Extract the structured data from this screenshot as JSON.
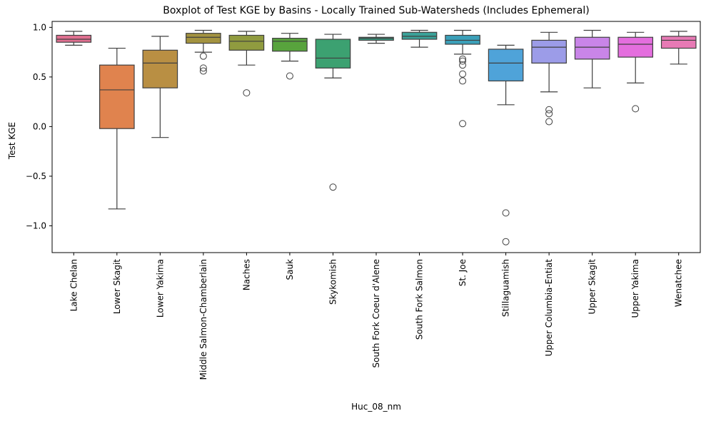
{
  "chart_data": {
    "type": "box",
    "title": "Boxplot of Test KGE by Basins - Locally Trained Sub-Watersheds (Includes Ephemeral)",
    "xlabel": "Huc_08_nm",
    "ylabel": "Test KGE",
    "ylim": [
      -1.27,
      1.06
    ],
    "yticks": [
      -1.0,
      -0.5,
      0.0,
      0.5,
      1.0
    ],
    "ytick_labels": [
      "−1.0",
      "−0.5",
      "0.0",
      "0.5",
      "1.0"
    ],
    "grid": false,
    "legend": "none",
    "categories": [
      "Lake Chelan",
      "Lower Skagit",
      "Lower Yakima",
      "Middle Salmon-Chamberlain",
      "Naches",
      "Sauk",
      "Skykomish",
      "South Fork Coeur d'Alene",
      "South Fork Salmon",
      "St. Joe",
      "Stillaguamish",
      "Upper Columbia-Entiat",
      "Upper Skagit",
      "Upper Yakima",
      "Wenatchee"
    ],
    "colors": [
      "#e07090",
      "#e0834e",
      "#b98f43",
      "#a39340",
      "#909b3f",
      "#58a33d",
      "#3ca171",
      "#3da186",
      "#3aa299",
      "#3ba0b9",
      "#4fa3d9",
      "#9c9ce8",
      "#c985e8",
      "#e46ede",
      "#e77ab5"
    ],
    "boxes": [
      {
        "whislo": 0.82,
        "q1": 0.85,
        "med": 0.88,
        "q3": 0.92,
        "whishi": 0.96,
        "fliers": []
      },
      {
        "whislo": -0.83,
        "q1": -0.02,
        "med": 0.37,
        "q3": 0.62,
        "whishi": 0.79,
        "fliers": []
      },
      {
        "whislo": -0.11,
        "q1": 0.39,
        "med": 0.64,
        "q3": 0.77,
        "whishi": 0.91,
        "fliers": []
      },
      {
        "whislo": 0.75,
        "q1": 0.84,
        "med": 0.9,
        "q3": 0.94,
        "whishi": 0.97,
        "fliers": [
          0.71,
          0.59,
          0.56
        ]
      },
      {
        "whislo": 0.62,
        "q1": 0.77,
        "med": 0.86,
        "q3": 0.92,
        "whishi": 0.96,
        "fliers": [
          0.34
        ]
      },
      {
        "whislo": 0.66,
        "q1": 0.76,
        "med": 0.86,
        "q3": 0.89,
        "whishi": 0.94,
        "fliers": [
          0.51
        ]
      },
      {
        "whislo": 0.49,
        "q1": 0.59,
        "med": 0.69,
        "q3": 0.88,
        "whishi": 0.93,
        "fliers": [
          -0.61
        ]
      },
      {
        "whislo": 0.84,
        "q1": 0.87,
        "med": 0.89,
        "q3": 0.9,
        "whishi": 0.93,
        "fliers": []
      },
      {
        "whislo": 0.8,
        "q1": 0.88,
        "med": 0.91,
        "q3": 0.95,
        "whishi": 0.97,
        "fliers": []
      },
      {
        "whislo": 0.73,
        "q1": 0.83,
        "med": 0.87,
        "q3": 0.92,
        "whishi": 0.97,
        "fliers": [
          0.68,
          0.66,
          0.62,
          0.53,
          0.46,
          0.03
        ]
      },
      {
        "whislo": 0.22,
        "q1": 0.46,
        "med": 0.64,
        "q3": 0.78,
        "whishi": 0.82,
        "fliers": [
          -0.87,
          -1.16
        ]
      },
      {
        "whislo": 0.35,
        "q1": 0.64,
        "med": 0.8,
        "q3": 0.87,
        "whishi": 0.95,
        "fliers": [
          0.17,
          0.13,
          0.05
        ]
      },
      {
        "whislo": 0.39,
        "q1": 0.68,
        "med": 0.8,
        "q3": 0.9,
        "whishi": 0.97,
        "fliers": []
      },
      {
        "whislo": 0.44,
        "q1": 0.7,
        "med": 0.83,
        "q3": 0.9,
        "whishi": 0.95,
        "fliers": [
          0.18
        ]
      },
      {
        "whislo": 0.63,
        "q1": 0.79,
        "med": 0.87,
        "q3": 0.91,
        "whishi": 0.96,
        "fliers": []
      }
    ]
  }
}
